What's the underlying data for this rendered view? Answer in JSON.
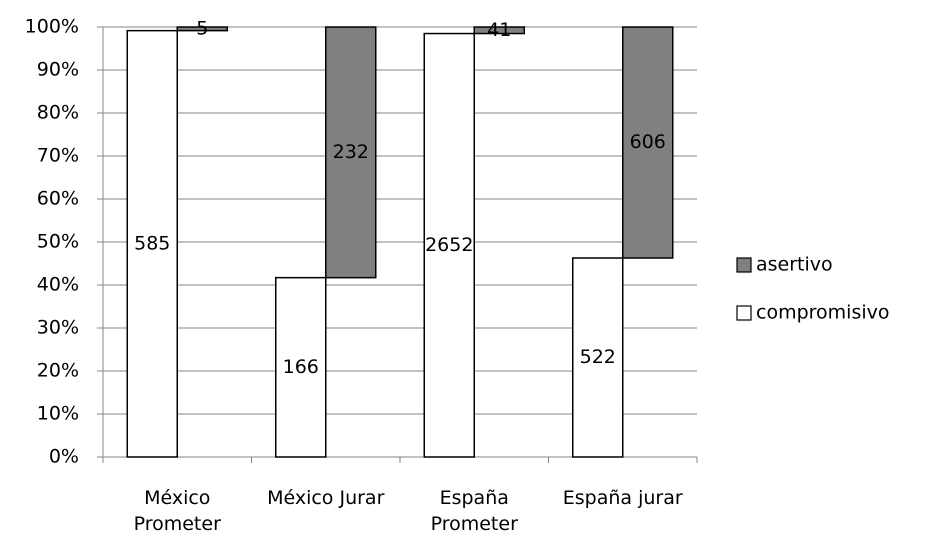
{
  "chart_data": {
    "type": "percent_offset_bar",
    "categories": [
      "México Prometer",
      "México Jurar",
      "España Prometer",
      "España jurar"
    ],
    "series": [
      {
        "name": "compromisivo",
        "color": "#ffffff",
        "values": [
          585,
          166,
          2652,
          522
        ]
      },
      {
        "name": "asertivo",
        "color": "#808080",
        "values": [
          5,
          232,
          41,
          606
        ]
      }
    ],
    "ylim": [
      0,
      100
    ],
    "yticks": [
      {
        "value": 0,
        "label": "0%"
      },
      {
        "value": 10,
        "label": "10%"
      },
      {
        "value": 20,
        "label": "20%"
      },
      {
        "value": 30,
        "label": "30%"
      },
      {
        "value": 40,
        "label": "40%"
      },
      {
        "value": 50,
        "label": "50%"
      },
      {
        "value": 60,
        "label": "60%"
      },
      {
        "value": 70,
        "label": "70%"
      },
      {
        "value": 80,
        "label": "80%"
      },
      {
        "value": 90,
        "label": "90%"
      },
      {
        "value": 100,
        "label": "100%"
      }
    ],
    "grid": true,
    "legend": "right"
  }
}
